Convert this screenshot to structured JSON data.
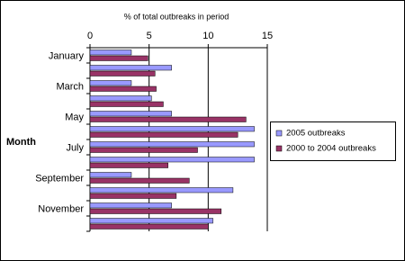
{
  "chart_data": {
    "type": "bar",
    "orientation": "horizontal",
    "x_label": "% of total outbreaks in period",
    "y_label": "Month",
    "categories": [
      "January",
      null,
      "March",
      null,
      "May",
      null,
      "July",
      null,
      "September",
      null,
      "November",
      null
    ],
    "series": [
      {
        "name": "2005 outbreaks",
        "color": "#9999ff",
        "values": [
          3.5,
          6.9,
          3.5,
          5.2,
          6.9,
          13.9,
          13.9,
          13.9,
          3.5,
          12.1,
          6.9,
          10.4
        ]
      },
      {
        "name": "2000 to 2004 outbreaks",
        "color": "#993366",
        "values": [
          4.9,
          5.5,
          5.6,
          6.2,
          13.2,
          12.5,
          9.1,
          6.6,
          8.4,
          7.3,
          11.1,
          10.0
        ]
      }
    ],
    "xlim": [
      0,
      15
    ],
    "xticks": [
      0,
      5,
      10,
      15
    ],
    "grid": true,
    "legend": "right"
  }
}
